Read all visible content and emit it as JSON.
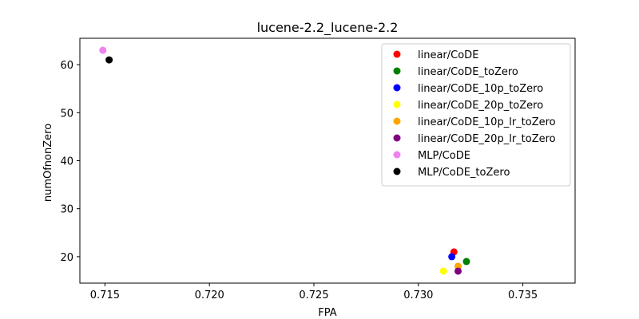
{
  "chart_data": {
    "type": "scatter",
    "title": "lucene-2.2_lucene-2.2",
    "xlabel": "FPA",
    "ylabel": "numOfnonZero",
    "xlim": [
      0.7138,
      0.7375
    ],
    "ylim": [
      14.5,
      65.5
    ],
    "xticks": [
      0.715,
      0.72,
      0.725,
      0.73,
      0.735
    ],
    "xtick_labels": [
      "0.715",
      "0.720",
      "0.725",
      "0.730",
      "0.735"
    ],
    "yticks": [
      20,
      30,
      40,
      50,
      60
    ],
    "ytick_labels": [
      "20",
      "30",
      "40",
      "50",
      "60"
    ],
    "grid": false,
    "legend_position": "top-right",
    "series": [
      {
        "name": "linear/CoDE",
        "color": "#ff0000",
        "points": [
          {
            "x": 0.7317,
            "y": 21
          }
        ]
      },
      {
        "name": "linear/CoDE_toZero",
        "color": "#008000",
        "points": [
          {
            "x": 0.7323,
            "y": 19
          }
        ]
      },
      {
        "name": "linear/CoDE_10p_toZero",
        "color": "#0000ff",
        "points": [
          {
            "x": 0.7316,
            "y": 20
          }
        ]
      },
      {
        "name": "linear/CoDE_20p_toZero",
        "color": "#ffff00",
        "points": [
          {
            "x": 0.7312,
            "y": 17
          }
        ]
      },
      {
        "name": "linear/CoDE_10p_lr_toZero",
        "color": "#ffa500",
        "points": [
          {
            "x": 0.7319,
            "y": 18
          }
        ]
      },
      {
        "name": "linear/CoDE_20p_lr_toZero",
        "color": "#800080",
        "points": [
          {
            "x": 0.7319,
            "y": 17
          }
        ]
      },
      {
        "name": "MLP/CoDE",
        "color": "#ee82ee",
        "points": [
          {
            "x": 0.7149,
            "y": 63
          }
        ]
      },
      {
        "name": "MLP/CoDE_toZero",
        "color": "#000000",
        "points": [
          {
            "x": 0.7152,
            "y": 61
          }
        ]
      }
    ]
  }
}
